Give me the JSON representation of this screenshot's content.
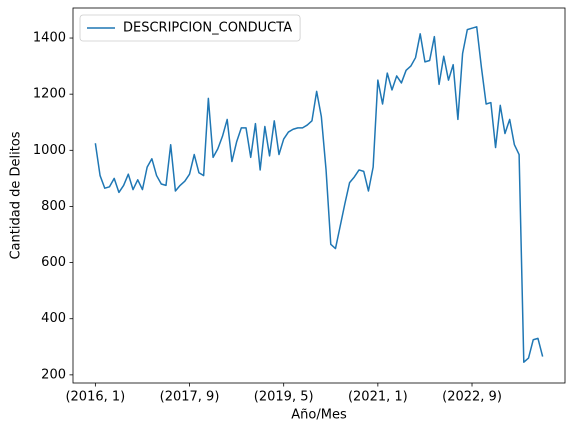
{
  "chart_data": {
    "type": "line",
    "xlabel": "Año/Mes",
    "ylabel": "Cantidad de Delitos",
    "categories": [
      "(2016, 1)",
      null,
      null,
      null,
      null,
      null,
      null,
      null,
      null,
      null,
      null,
      null,
      null,
      null,
      null,
      null,
      null,
      null,
      null,
      null,
      "(2017, 9)",
      null,
      null,
      null,
      null,
      null,
      null,
      null,
      null,
      null,
      null,
      null,
      null,
      null,
      null,
      null,
      null,
      null,
      null,
      null,
      "(2019, 5)",
      null,
      null,
      null,
      null,
      null,
      null,
      null,
      null,
      null,
      null,
      null,
      null,
      null,
      null,
      null,
      null,
      null,
      null,
      null,
      "(2021, 1)",
      null,
      null,
      null,
      null,
      null,
      null,
      null,
      null,
      null,
      null,
      null,
      null,
      null,
      null,
      null,
      null,
      null,
      null,
      null,
      "(2022, 9)",
      null,
      null,
      null,
      null,
      null,
      null,
      null,
      null,
      null,
      null,
      null,
      null,
      null,
      null,
      null
    ],
    "series": [
      {
        "name": "DESCRIPCION_CONDUCTA",
        "color": "#1f77b4",
        "values": [
          1025,
          910,
          865,
          870,
          900,
          850,
          875,
          915,
          860,
          895,
          860,
          940,
          970,
          910,
          880,
          875,
          1020,
          855,
          875,
          890,
          915,
          985,
          920,
          910,
          1185,
          975,
          1005,
          1050,
          1110,
          960,
          1030,
          1080,
          1080,
          975,
          1095,
          930,
          1085,
          980,
          1105,
          985,
          1040,
          1065,
          1075,
          1080,
          1080,
          1090,
          1105,
          1210,
          1120,
          930,
          665,
          650,
          730,
          810,
          885,
          905,
          930,
          925,
          855,
          940,
          1250,
          1165,
          1275,
          1215,
          1265,
          1240,
          1285,
          1300,
          1330,
          1415,
          1315,
          1320,
          1405,
          1235,
          1335,
          1250,
          1305,
          1110,
          1345,
          1430,
          1435,
          1440,
          1295,
          1165,
          1170,
          1010,
          1160,
          1060,
          1110,
          1020,
          985,
          245,
          260,
          325,
          330,
          265
        ]
      }
    ],
    "ylim": [
      171,
      1507
    ],
    "yticks": [
      200,
      400,
      600,
      800,
      1000,
      1200,
      1400
    ],
    "legend": "upper left"
  }
}
